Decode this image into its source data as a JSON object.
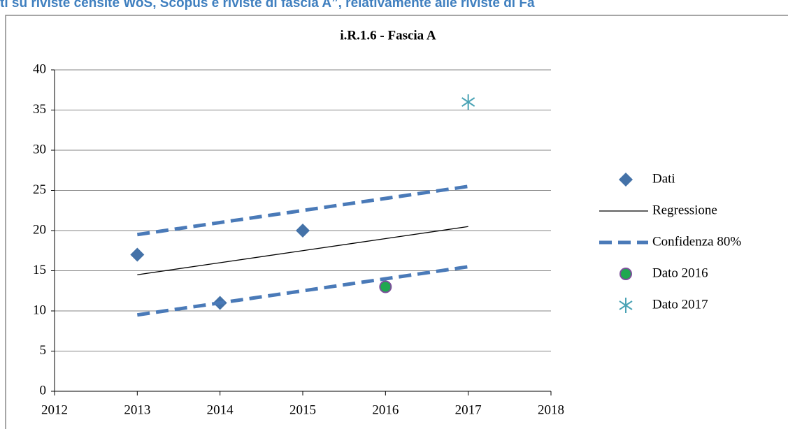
{
  "header": {
    "text": "ti su riviste censite WoS, Scopus e riviste di fascia A”, relativamente alle riviste di Fa"
  },
  "chart_data": {
    "type": "scatter",
    "title": "i.R.1.6 - Fascia A",
    "xlim": [
      2012,
      2018
    ],
    "xticks": [
      2012,
      2013,
      2014,
      2015,
      2016,
      2017,
      2018
    ],
    "ylim": [
      0,
      40
    ],
    "yticks": [
      0,
      5,
      10,
      15,
      20,
      25,
      30,
      35,
      40
    ],
    "grid": true,
    "legend": "right",
    "series": [
      {
        "name": "Dati",
        "color": "#4472a8",
        "marker": "diamond",
        "x": [
          2013,
          2014,
          2015
        ],
        "values": [
          17,
          11,
          20
        ]
      },
      {
        "name": "Regressione",
        "color": "#000000",
        "marker": "line",
        "x": [
          2013,
          2014,
          2015,
          2016,
          2017
        ],
        "values": [
          14.5,
          16,
          17.5,
          19,
          20.5
        ]
      },
      {
        "name": "Confidenza 80%",
        "color": "#4a7ab8",
        "marker": "dashed",
        "x": [
          2013,
          2014,
          2015,
          2016,
          2017
        ],
        "upper": [
          19.5,
          21,
          22.5,
          24,
          25.5
        ],
        "lower": [
          9.5,
          11,
          12.5,
          14,
          15.5
        ]
      },
      {
        "name": "Dato 2016",
        "color": "#1fa84f",
        "edge": "#7b4f9a",
        "marker": "circle",
        "x": [
          2016
        ],
        "values": [
          13
        ]
      },
      {
        "name": "Dato 2017",
        "color": "#4aa3b5",
        "marker": "asterisk",
        "x": [
          2017
        ],
        "values": [
          36
        ]
      }
    ]
  }
}
